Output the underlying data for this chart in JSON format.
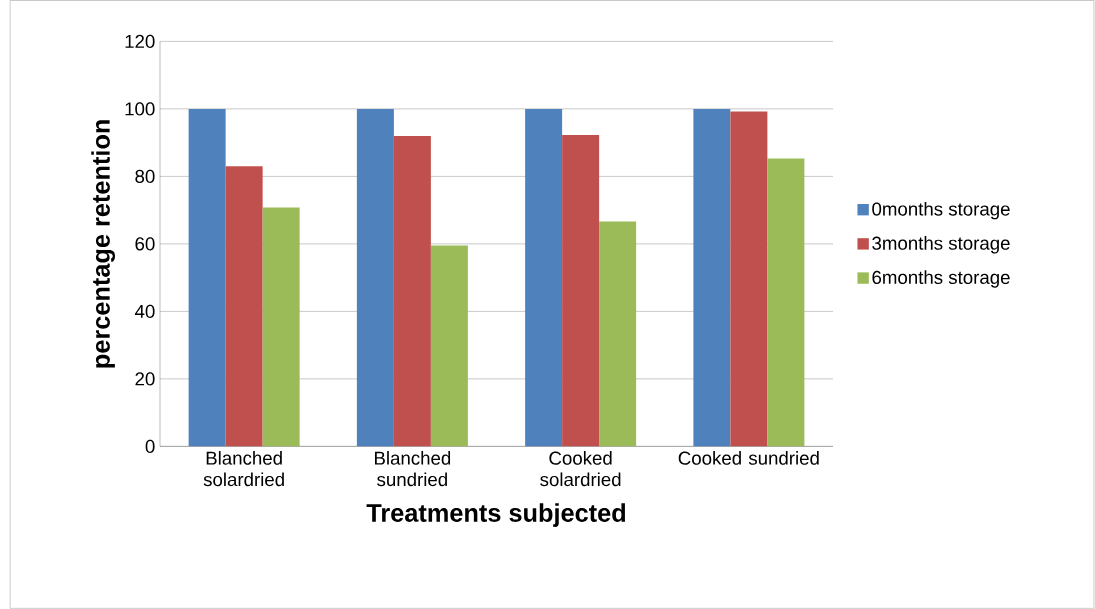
{
  "chart_data": {
    "type": "bar",
    "xlabel": "Treatments subjected",
    "ylabel": "percentage retention",
    "categories": [
      "Blanched solardried",
      "Blanched sundried",
      "Cooked solardried",
      "Cooked sundried"
    ],
    "series": [
      {
        "name": "0months storage",
        "color": "#4f81bd",
        "values": [
          100,
          100,
          100,
          100
        ]
      },
      {
        "name": "3months storage",
        "color": "#c0504d",
        "values": [
          83,
          92,
          92.3,
          99.2
        ]
      },
      {
        "name": "6months storage",
        "color": "#9bbb59",
        "values": [
          70.8,
          59.5,
          66.6,
          85.3
        ]
      }
    ],
    "ylim": [
      0,
      120
    ],
    "yticks": [
      0,
      20,
      40,
      60,
      80,
      100,
      120
    ],
    "grid": "y",
    "legend": "right"
  }
}
